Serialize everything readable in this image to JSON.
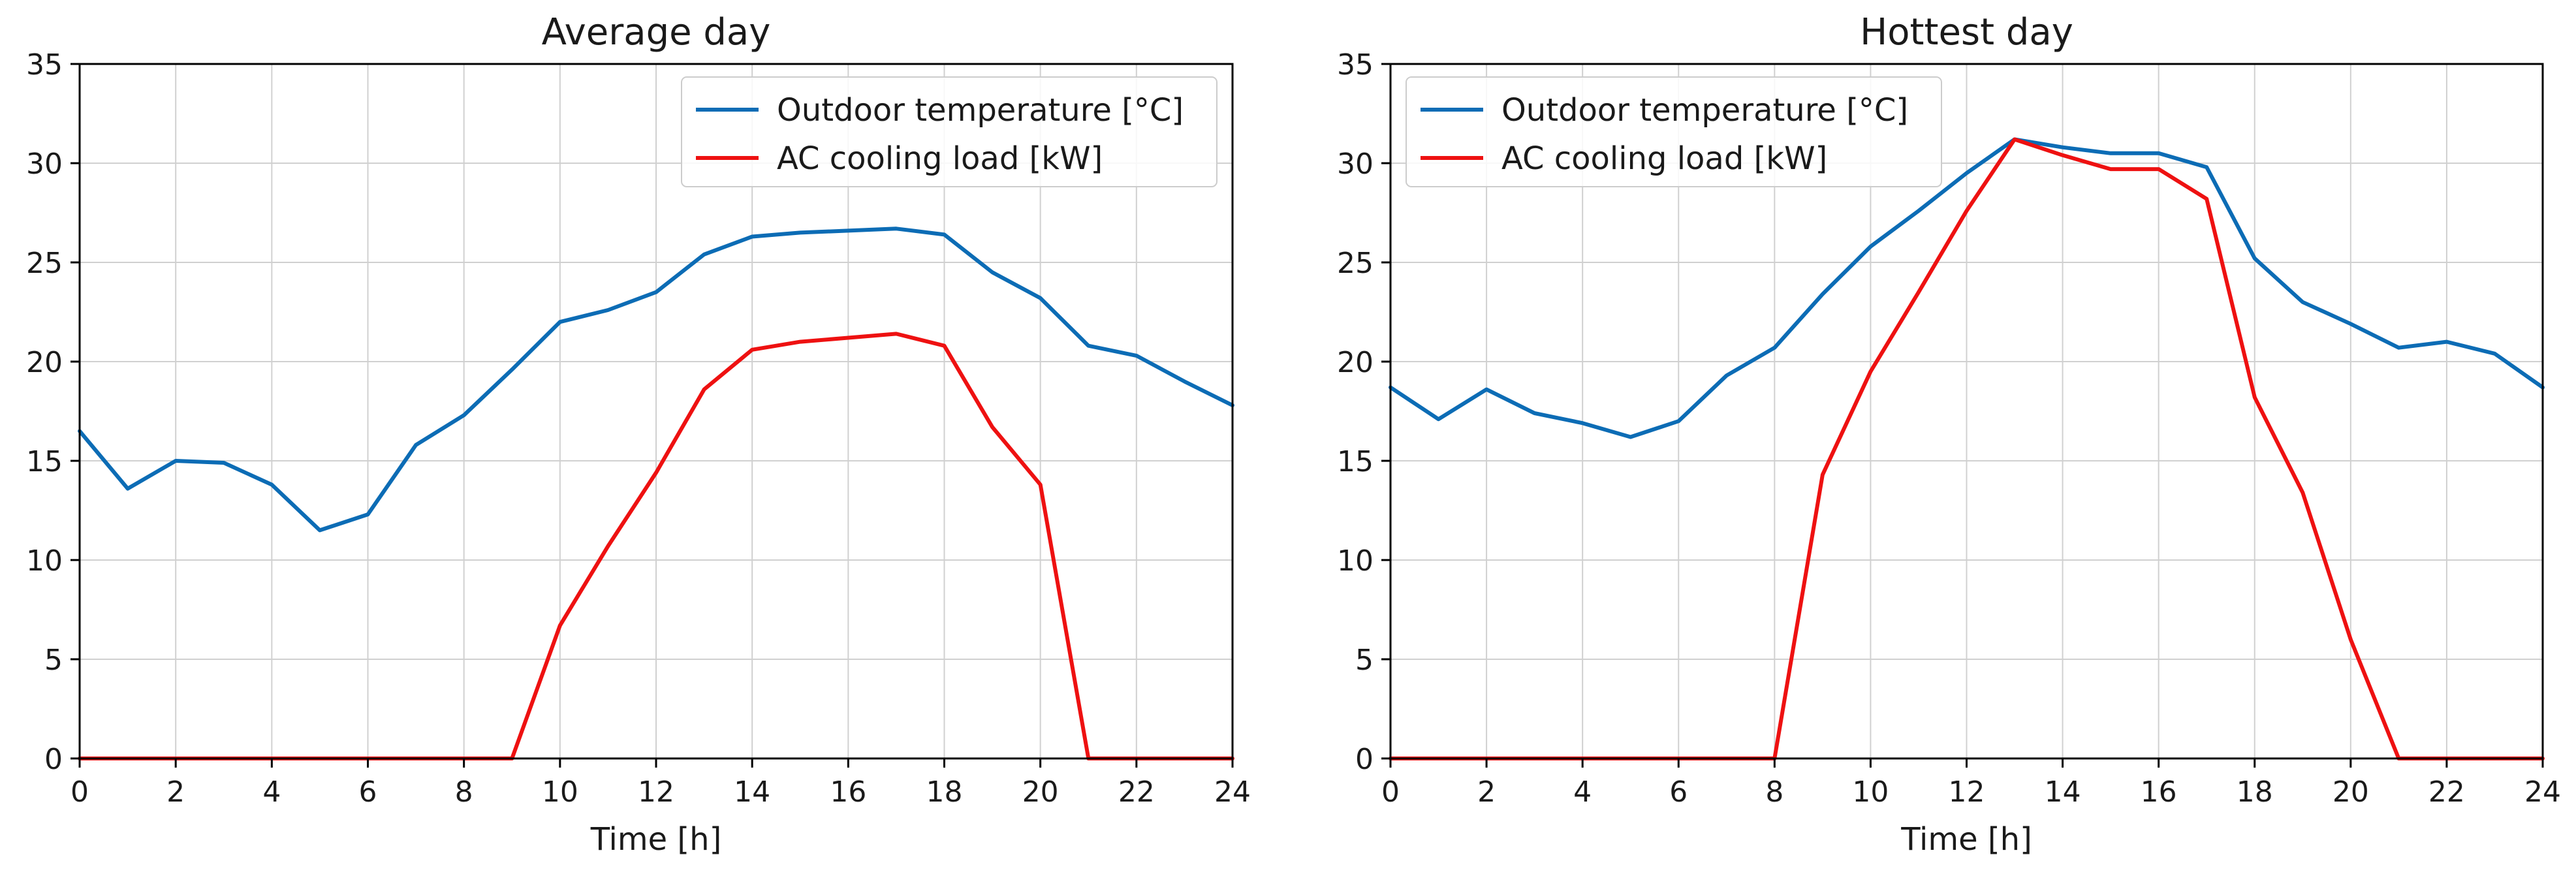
{
  "chart_data": [
    {
      "type": "line",
      "title": "Average day",
      "xlabel": "Time [h]",
      "ylabel": "",
      "xlim": [
        0,
        24
      ],
      "ylim": [
        0,
        35
      ],
      "xticks": [
        "0",
        "2",
        "4",
        "6",
        "8",
        "10",
        "12",
        "14",
        "16",
        "18",
        "20",
        "22",
        "24"
      ],
      "yticks": [
        "0",
        "5",
        "10",
        "15",
        "20",
        "25",
        "30",
        "35"
      ],
      "grid": true,
      "legend_position": "top-right",
      "x": [
        0,
        1,
        2,
        3,
        4,
        5,
        6,
        7,
        8,
        9,
        10,
        11,
        12,
        13,
        14,
        15,
        16,
        17,
        18,
        19,
        20,
        21,
        22,
        23,
        24
      ],
      "series": [
        {
          "name": "Outdoor temperature [°C]",
          "color": "#0c6cb5",
          "values": [
            16.5,
            13.6,
            15.0,
            14.9,
            13.8,
            11.5,
            12.3,
            15.8,
            17.3,
            19.6,
            22.0,
            22.6,
            23.5,
            25.4,
            26.3,
            26.5,
            26.6,
            26.7,
            26.4,
            24.5,
            23.2,
            20.8,
            20.3,
            19.0,
            17.8
          ]
        },
        {
          "name": "AC cooling load [kW]",
          "color": "#ee1111",
          "values": [
            0,
            0,
            0,
            0,
            0,
            0,
            0,
            0,
            0,
            0,
            6.7,
            10.7,
            14.4,
            18.6,
            20.6,
            21.0,
            21.2,
            21.4,
            20.8,
            16.7,
            13.8,
            0,
            0,
            0,
            0
          ]
        }
      ]
    },
    {
      "type": "line",
      "title": "Hottest day",
      "xlabel": "Time [h]",
      "ylabel": "",
      "xlim": [
        0,
        24
      ],
      "ylim": [
        0,
        35
      ],
      "xticks": [
        "0",
        "2",
        "4",
        "6",
        "8",
        "10",
        "12",
        "14",
        "16",
        "18",
        "20",
        "22",
        "24"
      ],
      "yticks": [
        "0",
        "5",
        "10",
        "15",
        "20",
        "25",
        "30",
        "35"
      ],
      "grid": true,
      "legend_position": "top-left",
      "x": [
        0,
        1,
        2,
        3,
        4,
        5,
        6,
        7,
        8,
        9,
        10,
        11,
        12,
        13,
        14,
        15,
        16,
        17,
        18,
        19,
        20,
        21,
        22,
        23,
        24
      ],
      "series": [
        {
          "name": "Outdoor temperature [°C]",
          "color": "#0c6cb5",
          "values": [
            18.7,
            17.1,
            18.6,
            17.4,
            16.9,
            16.2,
            17.0,
            19.3,
            20.7,
            23.4,
            25.8,
            27.6,
            29.5,
            31.2,
            30.8,
            30.5,
            30.5,
            29.8,
            25.2,
            23.0,
            21.9,
            20.7,
            21.0,
            20.4,
            18.7
          ]
        },
        {
          "name": "AC cooling load [kW]",
          "color": "#ee1111",
          "values": [
            0,
            0,
            0,
            0,
            0,
            0,
            0,
            0,
            0,
            14.3,
            19.5,
            23.5,
            27.6,
            31.2,
            30.4,
            29.7,
            29.7,
            28.2,
            18.2,
            13.4,
            6.0,
            0,
            0,
            0,
            0
          ]
        }
      ]
    }
  ]
}
